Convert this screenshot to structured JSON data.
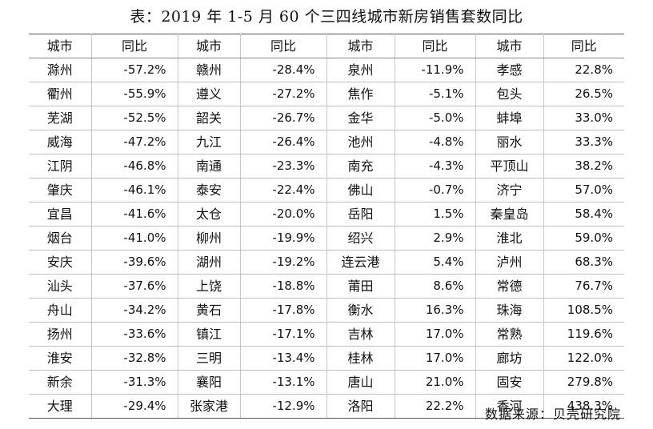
{
  "title": "表：2019 年 1-5 月 60 个三四线城市新房销售套数同比",
  "source": "数据来源：贝壳研究院",
  "chart_data": {
    "type": "table",
    "title": "表：2019 年 1-5 月 60 个三四线城市新房销售套数同比",
    "columns": [
      "城市",
      "同比",
      "城市",
      "同比",
      "城市",
      "同比",
      "城市",
      "同比"
    ],
    "rows": [
      [
        "滁州",
        "-57.2%",
        "赣州",
        "-28.4%",
        "泉州",
        "-11.9%",
        "孝感",
        "22.8%"
      ],
      [
        "衢州",
        "-55.9%",
        "遵义",
        "-27.2%",
        "焦作",
        "-5.1%",
        "包头",
        "26.5%"
      ],
      [
        "芜湖",
        "-52.5%",
        "韶关",
        "-26.7%",
        "金华",
        "-5.0%",
        "蚌埠",
        "33.0%"
      ],
      [
        "威海",
        "-47.2%",
        "九江",
        "-26.4%",
        "池州",
        "-4.8%",
        "丽水",
        "33.3%"
      ],
      [
        "江阴",
        "-46.8%",
        "南通",
        "-23.3%",
        "南充",
        "-4.3%",
        "平顶山",
        "38.2%"
      ],
      [
        "肇庆",
        "-46.1%",
        "泰安",
        "-22.4%",
        "佛山",
        "-0.7%",
        "济宁",
        "57.0%"
      ],
      [
        "宜昌",
        "-41.6%",
        "太仓",
        "-20.0%",
        "岳阳",
        "1.5%",
        "秦皇岛",
        "58.4%"
      ],
      [
        "烟台",
        "-41.0%",
        "柳州",
        "-19.9%",
        "绍兴",
        "2.9%",
        "淮北",
        "59.0%"
      ],
      [
        "安庆",
        "-39.6%",
        "湖州",
        "-19.2%",
        "连云港",
        "5.4%",
        "泸州",
        "68.3%"
      ],
      [
        "汕头",
        "-37.6%",
        "上饶",
        "-18.8%",
        "莆田",
        "8.6%",
        "常德",
        "76.7%"
      ],
      [
        "舟山",
        "-34.2%",
        "黄石",
        "-17.8%",
        "衡水",
        "16.3%",
        "珠海",
        "108.5%"
      ],
      [
        "扬州",
        "-33.6%",
        "镇江",
        "-17.1%",
        "吉林",
        "17.0%",
        "常熟",
        "119.6%"
      ],
      [
        "淮安",
        "-32.8%",
        "三明",
        "-13.4%",
        "桂林",
        "17.0%",
        "廊坊",
        "122.0%"
      ],
      [
        "新余",
        "-31.3%",
        "襄阳",
        "-13.1%",
        "唐山",
        "21.0%",
        "固安",
        "279.8%"
      ],
      [
        "大理",
        "-29.4%",
        "张家港",
        "-12.9%",
        "洛阳",
        "22.2%",
        "香河",
        "438.3%"
      ]
    ]
  }
}
